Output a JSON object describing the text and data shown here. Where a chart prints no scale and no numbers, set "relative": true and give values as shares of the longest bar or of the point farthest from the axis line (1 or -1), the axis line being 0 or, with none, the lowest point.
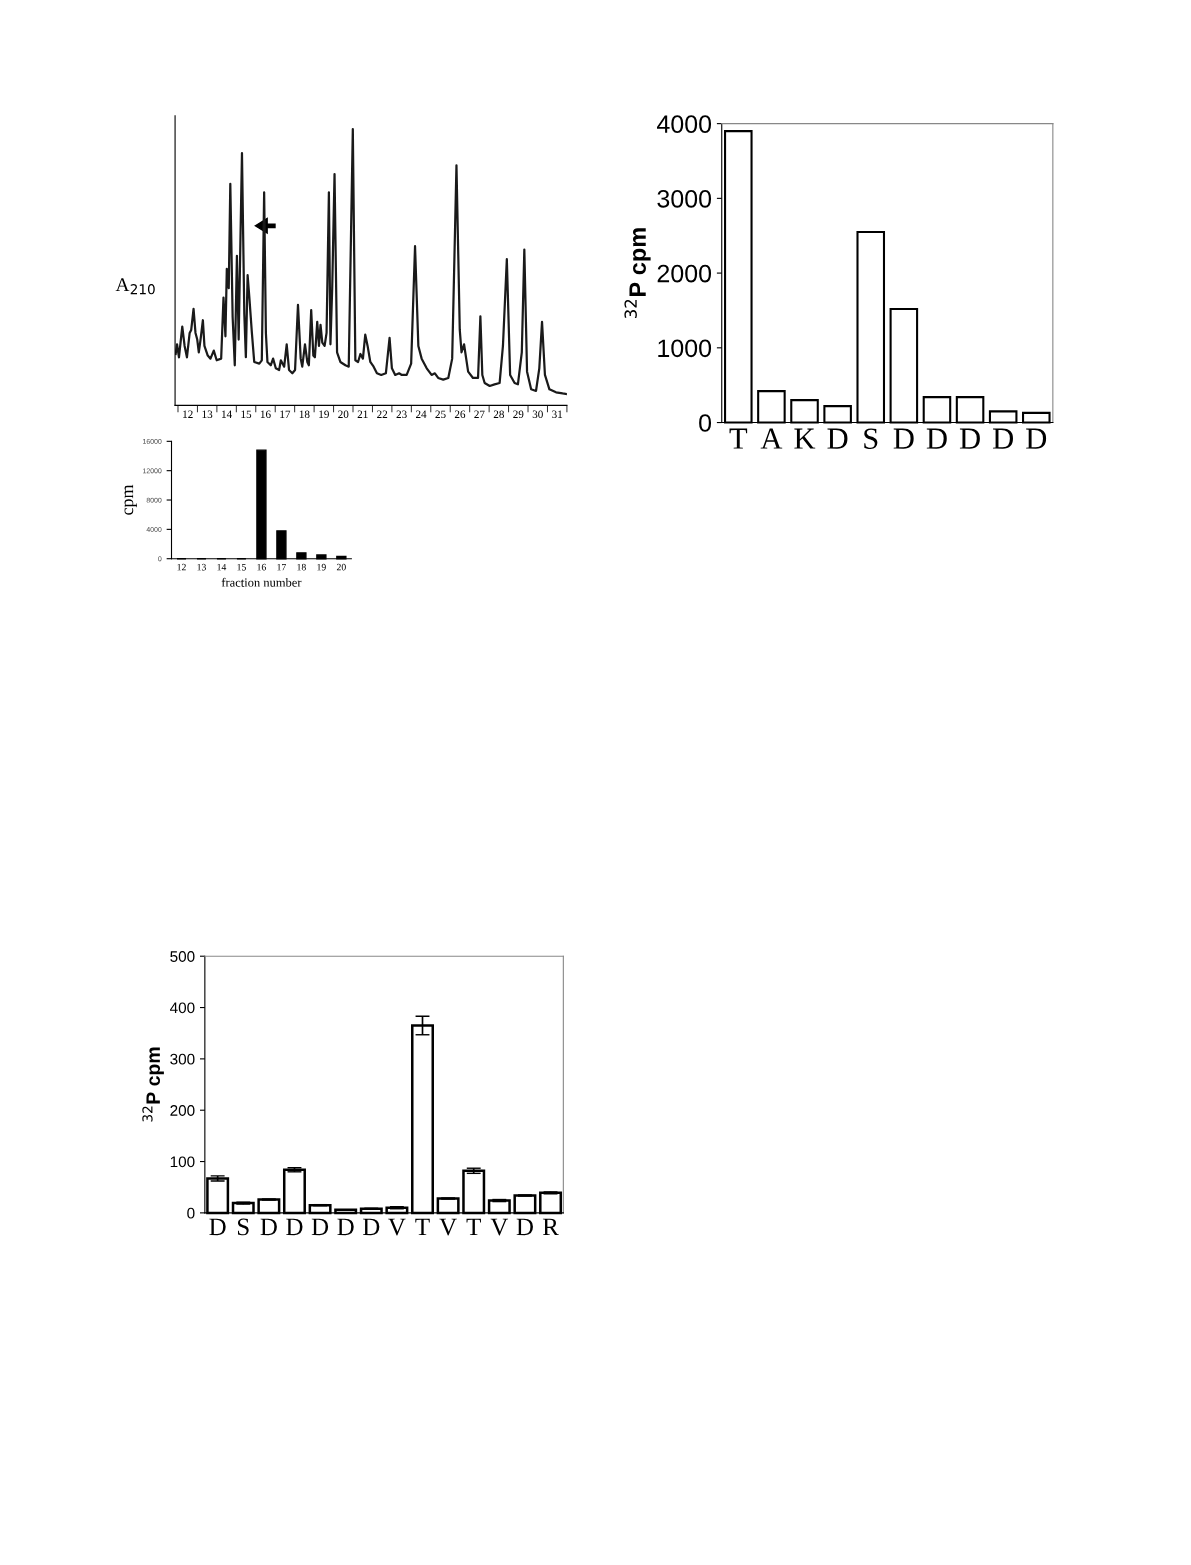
{
  "chart_data": [
    {
      "type": "line",
      "relative": true,
      "ylabel": "A$_{210}$",
      "color": "#1a1a1a",
      "xlim": [
        11.85,
        32.0
      ],
      "xticks": [
        {
          "value": 12,
          "label": null
        },
        {
          "value": 12.5,
          "label": "12"
        },
        {
          "value": 13,
          "label": null
        },
        {
          "value": 13.5,
          "label": "13"
        },
        {
          "value": 14,
          "label": null
        },
        {
          "value": 14.5,
          "label": "14"
        },
        {
          "value": 15,
          "label": null
        },
        {
          "value": 15.5,
          "label": "15"
        },
        {
          "value": 16,
          "label": null
        },
        {
          "value": 16.5,
          "label": "16"
        },
        {
          "value": 17,
          "label": null
        },
        {
          "value": 17.5,
          "label": "17"
        },
        {
          "value": 18,
          "label": null
        },
        {
          "value": 18.5,
          "label": "18"
        },
        {
          "value": 19,
          "label": null
        },
        {
          "value": 19.5,
          "label": "19"
        },
        {
          "value": 20,
          "label": null
        },
        {
          "value": 20.5,
          "label": "20"
        },
        {
          "value": 21,
          "label": null
        },
        {
          "value": 21.5,
          "label": "21"
        },
        {
          "value": 22,
          "label": null
        },
        {
          "value": 22.5,
          "label": "22"
        },
        {
          "value": 23,
          "label": null
        },
        {
          "value": 23.5,
          "label": "23"
        },
        {
          "value": 24,
          "label": null
        },
        {
          "value": 24.5,
          "label": "24"
        },
        {
          "value": 25,
          "label": null
        },
        {
          "value": 25.5,
          "label": "25"
        },
        {
          "value": 26,
          "label": null
        },
        {
          "value": 26.5,
          "label": "26"
        },
        {
          "value": 27,
          "label": null
        },
        {
          "value": 27.5,
          "label": "27"
        },
        {
          "value": 28,
          "label": null
        },
        {
          "value": 28.5,
          "label": "28"
        },
        {
          "value": 29,
          "label": null
        },
        {
          "value": 29.5,
          "label": "29"
        },
        {
          "value": 30,
          "label": null
        },
        {
          "value": 30.5,
          "label": "30"
        },
        {
          "value": 31,
          "label": null
        },
        {
          "value": 31.5,
          "label": "31"
        },
        {
          "value": 32,
          "label": null
        }
      ],
      "x": [
        11.88,
        11.95,
        12.05,
        12.22,
        12.34,
        12.46,
        12.6,
        12.68,
        12.8,
        12.9,
        12.99,
        13.07,
        13.16,
        13.28,
        13.36,
        13.53,
        13.67,
        13.84,
        13.99,
        14.22,
        14.34,
        14.44,
        14.51,
        14.61,
        14.69,
        14.81,
        14.92,
        15.03,
        15.12,
        15.29,
        15.41,
        15.49,
        15.58,
        15.67,
        15.8,
        15.92,
        16.18,
        16.31,
        16.43,
        16.52,
        16.6,
        16.77,
        16.89,
        17.03,
        17.2,
        17.29,
        17.46,
        17.59,
        17.71,
        17.88,
        18.02,
        18.17,
        18.31,
        18.39,
        18.53,
        18.65,
        18.73,
        18.85,
        18.96,
        19.04,
        19.16,
        19.25,
        19.33,
        19.42,
        19.54,
        19.64,
        19.76,
        19.84,
        19.93,
        20.05,
        20.18,
        20.35,
        20.61,
        20.78,
        20.99,
        21.12,
        21.26,
        21.38,
        21.51,
        21.63,
        21.75,
        21.89,
        22.06,
        22.23,
        22.45,
        22.69,
        22.88,
        23.0,
        23.17,
        23.37,
        23.51,
        23.76,
        23.99,
        24.19,
        24.36,
        24.53,
        24.79,
        25.04,
        25.21,
        25.38,
        25.64,
        25.9,
        26.1,
        26.32,
        26.49,
        26.58,
        26.71,
        26.92,
        27.17,
        27.43,
        27.55,
        27.65,
        27.77,
        28.03,
        28.28,
        28.54,
        28.71,
        28.91,
        29.08,
        29.31,
        29.48,
        29.68,
        29.81,
        29.95,
        30.16,
        30.41,
        30.58,
        30.72,
        30.87,
        31.1,
        31.44,
        31.78,
        32.0
      ],
      "values": [
        0.186,
        0.221,
        0.174,
        0.285,
        0.215,
        0.174,
        0.262,
        0.273,
        0.349,
        0.262,
        0.238,
        0.192,
        0.238,
        0.308,
        0.215,
        0.18,
        0.169,
        0.198,
        0.163,
        0.169,
        0.39,
        0.25,
        0.494,
        0.424,
        0.802,
        0.32,
        0.145,
        0.541,
        0.238,
        0.913,
        0.331,
        0.174,
        0.471,
        0.39,
        0.262,
        0.157,
        0.151,
        0.163,
        0.771,
        0.262,
        0.157,
        0.145,
        0.169,
        0.134,
        0.128,
        0.163,
        0.14,
        0.221,
        0.128,
        0.116,
        0.128,
        0.364,
        0.169,
        0.14,
        0.221,
        0.157,
        0.145,
        0.345,
        0.18,
        0.174,
        0.302,
        0.215,
        0.291,
        0.227,
        0.215,
        0.262,
        0.771,
        0.221,
        0.424,
        0.837,
        0.192,
        0.157,
        0.145,
        0.14,
        1.0,
        0.163,
        0.157,
        0.186,
        0.169,
        0.256,
        0.215,
        0.157,
        0.14,
        0.116,
        0.11,
        0.116,
        0.244,
        0.134,
        0.11,
        0.116,
        0.11,
        0.11,
        0.151,
        0.576,
        0.215,
        0.169,
        0.134,
        0.11,
        0.116,
        0.099,
        0.093,
        0.099,
        0.169,
        0.869,
        0.273,
        0.192,
        0.221,
        0.122,
        0.099,
        0.099,
        0.322,
        0.11,
        0.081,
        0.07,
        0.076,
        0.081,
        0.215,
        0.529,
        0.11,
        0.081,
        0.076,
        0.192,
        0.564,
        0.122,
        0.058,
        0.052,
        0.134,
        0.302,
        0.11,
        0.058,
        0.047,
        0.043,
        0.041
      ]
    },
    {
      "type": "bar",
      "xlabel": "fraction number",
      "ylabel": "cpm",
      "color": "#000000",
      "ylim": [
        0,
        16000
      ],
      "yticks": [
        0,
        4000,
        8000,
        12000,
        16000
      ],
      "categories": [
        "12",
        "13",
        "14",
        "15",
        "16",
        "17",
        "18",
        "19",
        "20"
      ],
      "values": [
        0,
        0,
        0,
        0,
        14800,
        3800,
        800,
        500,
        300
      ]
    },
    {
      "type": "bar",
      "ylabel": "$^{32}$P cpm",
      "color": "#ffffff",
      "ylim": [
        0,
        4000
      ],
      "yticks": [
        0,
        1000,
        2000,
        3000,
        4000
      ],
      "categories": [
        "T",
        "A",
        "K",
        "D",
        "S",
        "D",
        "D",
        "D",
        "D",
        "D"
      ],
      "values": [
        3900,
        420,
        300,
        220,
        2550,
        1520,
        340,
        340,
        150,
        130
      ]
    },
    {
      "type": "bar",
      "ylabel": "$^{32}$P cpm",
      "color": "#ffffff",
      "ylim": [
        0,
        500
      ],
      "yticks": [
        0,
        100,
        200,
        300,
        400,
        500
      ],
      "categories": [
        "D",
        "S",
        "D",
        "D",
        "D",
        "D",
        "D",
        "V",
        "T",
        "V",
        "T",
        "V",
        "D",
        "R"
      ],
      "values": [
        67,
        19,
        26,
        84,
        15,
        6,
        8,
        10,
        365,
        28,
        82,
        24,
        34,
        39
      ],
      "errors": [
        5,
        2,
        1,
        4,
        1,
        null,
        1,
        2,
        18,
        1,
        5,
        2,
        1,
        2
      ]
    }
  ]
}
